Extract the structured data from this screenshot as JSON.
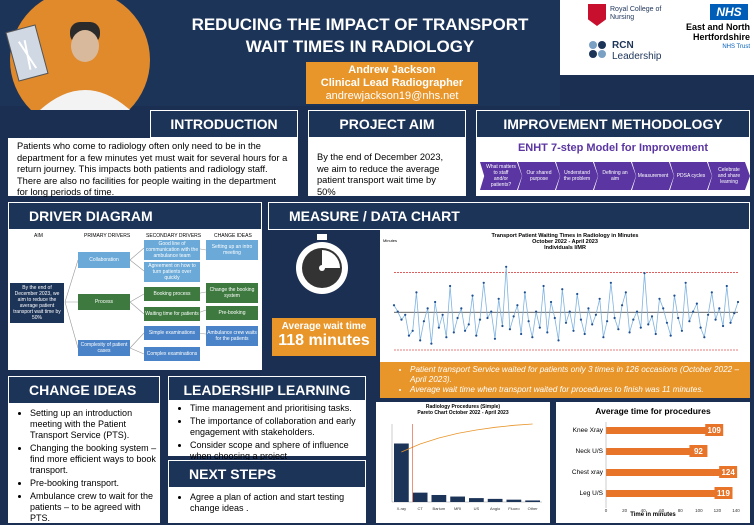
{
  "header": {
    "title_line1": "REDUCING THE IMPACT OF TRANSPORT",
    "title_line2": "WAIT TIMES IN RADIOLOGY"
  },
  "logos": {
    "rcn": "Royal College of Nursing",
    "rcn_leadership_1": "RCN",
    "rcn_leadership_2": "Leadership",
    "nhs": "NHS",
    "trust_1": "East and North",
    "trust_2": "Hertfordshire",
    "trust_3": "NHS Trust"
  },
  "author": {
    "name": "Andrew Jackson",
    "role": "Clinical Lead Radiographer",
    "email": "andrewjackson19@nhs.net"
  },
  "sections": {
    "introduction": "INTRODUCTION",
    "project_aim": "PROJECT AIM",
    "methodology": "IMPROVEMENT METHODOLOGY",
    "driver": "DRIVER DIAGRAM",
    "measure": "MEASURE / DATA CHART",
    "change": "CHANGE IDEAS",
    "leadership": "LEADERSHIP LEARNING",
    "next": "NEXT STEPS"
  },
  "introduction_text": "Patients who come to radiology often only need to be in the department for a few minutes yet must wait for several hours for a return journey. This impacts both patients and radiology staff. There are also no facilities for people waiting in the department for long periods of time.",
  "aim_text": "By the end of December 2023, we aim to reduce the average patient transport wait time by 50%",
  "methodology": {
    "model": "ENHT 7-step Model for Improvement",
    "steps": [
      "What matters to staff and/or patients?",
      "Our shared purpose",
      "Understand the problem",
      "Defining an aim",
      "Measurement",
      "PDSA cycles",
      "Celebrate and share learning"
    ]
  },
  "driver": {
    "col_aim": "AIM",
    "col_primary": "PRIMARY DRIVERS",
    "col_secondary": "SECONDARY DRIVERS",
    "col_change": "CHANGE IDEAS",
    "aim": "By the end of December 2023, we aim to reduce the average patient transport wait time by 50%",
    "primary": [
      "Collaboration",
      "Process",
      "Complexity of patient cases"
    ],
    "secondary": [
      "Good line of communication with the ambulance team",
      "Agreement on how to turn patients over quickly",
      "Booking process",
      "Waiting time for patients",
      "Simple examinations",
      "Complex examinations"
    ],
    "changes": [
      "Setting up an intro meeting",
      "Change the booking system",
      "Pre-booking",
      "Ambulance crew waits for the patients"
    ]
  },
  "measure": {
    "avg_label": "Average wait time",
    "avg_value": "118 minutes",
    "bullet1": "Patient transport Service waited for patients only 3 times in 126 occasions (October 2022 – April 2023).",
    "bullet2": "Average wait time when transport waited for procedures to finish was 11 minutes."
  },
  "chart_data": [
    {
      "type": "line",
      "title": "Transport Patient Waiting Times in Radiology in Minutes",
      "subtitle": "October 2022 - April 2023",
      "subtitle2": "Individuals I/MR",
      "ylabel": "Minutes",
      "ylim": [
        0,
        300
      ],
      "values": [
        140,
        120,
        95,
        110,
        45,
        60,
        180,
        30,
        90,
        130,
        20,
        150,
        70,
        110,
        40,
        200,
        55,
        100,
        130,
        60,
        80,
        170,
        45,
        95,
        210,
        100,
        120,
        35,
        160,
        75,
        260,
        65,
        105,
        140,
        50,
        180,
        90,
        40,
        120,
        70,
        200,
        55,
        150,
        100,
        30,
        190,
        85,
        120,
        60,
        175,
        95,
        50,
        130,
        80,
        110,
        160,
        40,
        90,
        210,
        100,
        65,
        140,
        180,
        55,
        95,
        120,
        70,
        240,
        80,
        105,
        50,
        160,
        130,
        85,
        45,
        170,
        100,
        60,
        210,
        90,
        120,
        145,
        70,
        40,
        110,
        180,
        95,
        130,
        75,
        200,
        85,
        115,
        150
      ],
      "mean": 118,
      "ucl": 242,
      "lcl": 0
    },
    {
      "type": "bar",
      "title": "Radiology Procedures (Simple)",
      "subtitle": "Pareto Chart October 2022 - April 2023",
      "categories": [
        "X-ray",
        "CT",
        "Barium",
        "MRI",
        "US",
        "Angio",
        "Fluoro",
        "Other"
      ],
      "values": [
        75,
        12,
        9,
        7,
        5,
        4,
        3,
        2
      ],
      "ylim": [
        0,
        100
      ]
    },
    {
      "type": "bar",
      "title": "Average time for procedures",
      "xlabel": "Time in minutes",
      "categories": [
        "Knee Xray",
        "Neck U/S",
        "Chest xray",
        "Leg U/S"
      ],
      "values": [
        109,
        92,
        124,
        119
      ],
      "xlim": [
        0,
        140
      ]
    }
  ],
  "change_ideas": [
    "Setting up an introduction meeting with the Patient Transport Service (PTS).",
    "Changing the booking system – find more efficient ways to book transport.",
    "Pre-booking transport.",
    "Ambulance crew to wait for the patients – to be agreed with PTS."
  ],
  "leadership_items": [
    "Time management and prioritising tasks.",
    "The importance of collaboration and early engagement with stakeholders.",
    "Consider scope and sphere of influence when choosing a project"
  ],
  "next_items": [
    "Agree a plan of action and start testing change ideas ."
  ]
}
